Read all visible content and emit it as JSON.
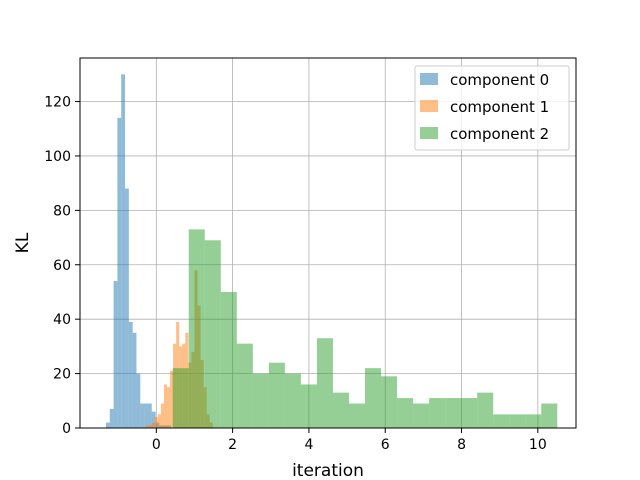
{
  "chart_data": {
    "type": "bar",
    "subtype": "histogram",
    "title": "",
    "xlabel": "iteration",
    "ylabel": "KL",
    "xlim": [
      -2.0,
      11.0
    ],
    "ylim": [
      0,
      136
    ],
    "xticks": [
      0,
      2,
      4,
      6,
      8,
      10
    ],
    "yticks": [
      0,
      20,
      40,
      60,
      80,
      100,
      120
    ],
    "grid": true,
    "legend": {
      "location": "upper right"
    },
    "series": [
      {
        "name": "component 0",
        "color": "#1f77b4",
        "opacity": 0.5,
        "bins": [
          [
            -1.32,
            -1.22,
            2
          ],
          [
            -1.22,
            -1.12,
            7
          ],
          [
            -1.12,
            -1.02,
            54
          ],
          [
            -1.02,
            -0.92,
            114
          ],
          [
            -0.92,
            -0.82,
            130
          ],
          [
            -0.82,
            -0.72,
            88
          ],
          [
            -0.72,
            -0.62,
            39
          ],
          [
            -0.62,
            -0.52,
            35
          ],
          [
            -0.52,
            -0.42,
            20
          ],
          [
            -0.42,
            -0.32,
            9
          ],
          [
            -0.32,
            -0.22,
            9
          ],
          [
            -0.22,
            -0.12,
            9
          ],
          [
            -0.12,
            -0.02,
            6
          ],
          [
            -0.02,
            0.08,
            2
          ],
          [
            0.08,
            0.18,
            1
          ],
          [
            0.18,
            0.28,
            1
          ],
          [
            0.28,
            0.38,
            1
          ]
        ]
      },
      {
        "name": "component 1",
        "color": "#ff7f0e",
        "opacity": 0.5,
        "bins": [
          [
            -0.28,
            -0.2,
            1
          ],
          [
            -0.2,
            -0.12,
            1
          ],
          [
            -0.12,
            -0.04,
            2
          ],
          [
            -0.04,
            0.04,
            4
          ],
          [
            0.04,
            0.12,
            5
          ],
          [
            0.12,
            0.2,
            9
          ],
          [
            0.2,
            0.28,
            16
          ],
          [
            0.28,
            0.36,
            15
          ],
          [
            0.36,
            0.44,
            21
          ],
          [
            0.44,
            0.52,
            31
          ],
          [
            0.52,
            0.6,
            39
          ],
          [
            0.6,
            0.68,
            30
          ],
          [
            0.68,
            0.76,
            31
          ],
          [
            0.76,
            0.84,
            35
          ],
          [
            0.84,
            0.92,
            24
          ],
          [
            0.92,
            1.0,
            28
          ],
          [
            1.0,
            1.08,
            58
          ],
          [
            1.08,
            1.16,
            45
          ],
          [
            1.16,
            1.24,
            25
          ],
          [
            1.24,
            1.32,
            15
          ],
          [
            1.32,
            1.4,
            5
          ],
          [
            1.4,
            1.48,
            2
          ]
        ]
      },
      {
        "name": "component 2",
        "color": "#2ca02c",
        "opacity": 0.5,
        "bins": [
          [
            0.43,
            0.85,
            22
          ],
          [
            0.85,
            1.27,
            73
          ],
          [
            1.27,
            1.69,
            69
          ],
          [
            1.69,
            2.11,
            50
          ],
          [
            2.11,
            2.53,
            31
          ],
          [
            2.53,
            2.95,
            20
          ],
          [
            2.95,
            3.37,
            24
          ],
          [
            3.37,
            3.79,
            20
          ],
          [
            3.79,
            4.21,
            16
          ],
          [
            4.21,
            4.63,
            33
          ],
          [
            4.63,
            5.05,
            13
          ],
          [
            5.05,
            5.47,
            9
          ],
          [
            5.47,
            5.89,
            22
          ],
          [
            5.89,
            6.31,
            19
          ],
          [
            6.31,
            6.73,
            11
          ],
          [
            6.73,
            7.15,
            9
          ],
          [
            7.15,
            7.57,
            11
          ],
          [
            7.57,
            7.99,
            11
          ],
          [
            7.99,
            8.41,
            11
          ],
          [
            8.41,
            8.83,
            13
          ],
          [
            8.83,
            9.25,
            5
          ],
          [
            9.25,
            9.67,
            5
          ],
          [
            9.67,
            10.09,
            5
          ],
          [
            10.09,
            10.51,
            9
          ]
        ]
      }
    ]
  }
}
